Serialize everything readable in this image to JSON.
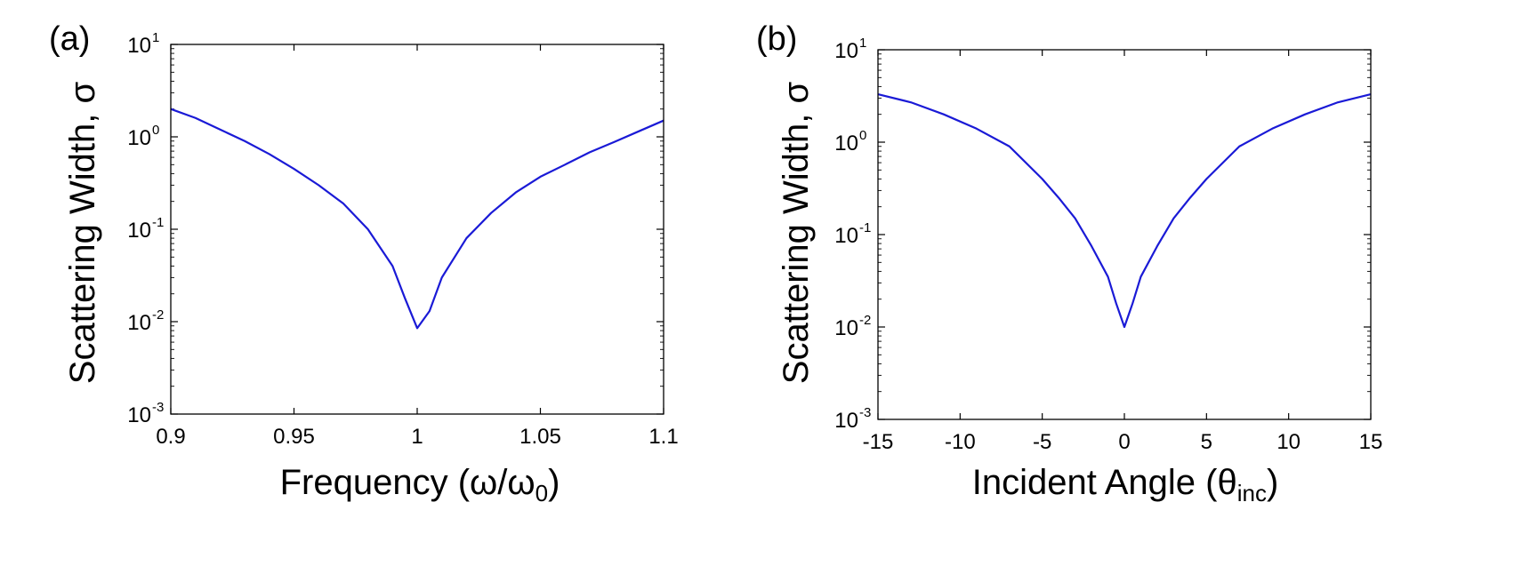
{
  "colors": {
    "series": "#1a1ad6",
    "axes": "#000000"
  },
  "chart_data": [
    {
      "type": "line",
      "panel": "(a)",
      "ylabel": "Scattering Width, σ",
      "xlabel_main": "Frequency (ω/ω",
      "xlabel_sub": "0",
      "xlabel_end": ")",
      "xscale": "linear",
      "yscale": "log",
      "xlim": [
        0.9,
        1.1
      ],
      "ylim": [
        0.001,
        10
      ],
      "xticks": [
        0.9,
        0.95,
        1,
        1.05,
        1.1
      ],
      "xtick_labels": [
        "0.9",
        "0.95",
        "1",
        "1.05",
        "1.1"
      ],
      "yticks": [
        0.001,
        0.01,
        0.1,
        1,
        10
      ],
      "ytick_base": [
        "10",
        "10",
        "10",
        "10",
        "10"
      ],
      "ytick_exp": [
        "-3",
        "-2",
        "-1",
        "0",
        "1"
      ],
      "series": [
        {
          "name": "σ",
          "x": [
            0.9,
            0.91,
            0.92,
            0.93,
            0.94,
            0.95,
            0.96,
            0.97,
            0.98,
            0.99,
            0.995,
            1.0,
            1.005,
            1.01,
            1.02,
            1.03,
            1.04,
            1.05,
            1.06,
            1.07,
            1.08,
            1.09,
            1.1
          ],
          "y": [
            2.0,
            1.6,
            1.2,
            0.9,
            0.65,
            0.45,
            0.3,
            0.19,
            0.1,
            0.04,
            0.018,
            0.0085,
            0.013,
            0.03,
            0.08,
            0.15,
            0.25,
            0.37,
            0.5,
            0.68,
            0.88,
            1.15,
            1.5
          ]
        }
      ]
    },
    {
      "type": "line",
      "panel": "(b)",
      "ylabel": "Scattering Width, σ",
      "xlabel_main": "Incident Angle (θ",
      "xlabel_sub": "inc",
      "xlabel_end": ")",
      "xscale": "linear",
      "yscale": "log",
      "xlim": [
        -15,
        15
      ],
      "ylim": [
        0.001,
        10
      ],
      "xticks": [
        -15,
        -10,
        -5,
        0,
        5,
        10,
        15
      ],
      "xtick_labels": [
        "-15",
        "-10",
        "-5",
        "0",
        "5",
        "10",
        "15"
      ],
      "yticks": [
        0.001,
        0.01,
        0.1,
        1,
        10
      ],
      "ytick_base": [
        "10",
        "10",
        "10",
        "10",
        "10"
      ],
      "ytick_exp": [
        "-3",
        "-2",
        "-1",
        "0",
        "1"
      ],
      "series": [
        {
          "name": "σ",
          "x": [
            -15,
            -13,
            -11,
            -9,
            -7,
            -5,
            -4,
            -3,
            -2,
            -1,
            -0.5,
            0,
            0.5,
            1,
            2,
            3,
            4,
            5,
            7,
            9,
            11,
            13,
            15
          ],
          "y": [
            3.3,
            2.7,
            2.0,
            1.4,
            0.9,
            0.4,
            0.25,
            0.15,
            0.075,
            0.035,
            0.018,
            0.01,
            0.018,
            0.035,
            0.075,
            0.15,
            0.25,
            0.4,
            0.9,
            1.4,
            2.0,
            2.7,
            3.3
          ]
        }
      ]
    }
  ]
}
